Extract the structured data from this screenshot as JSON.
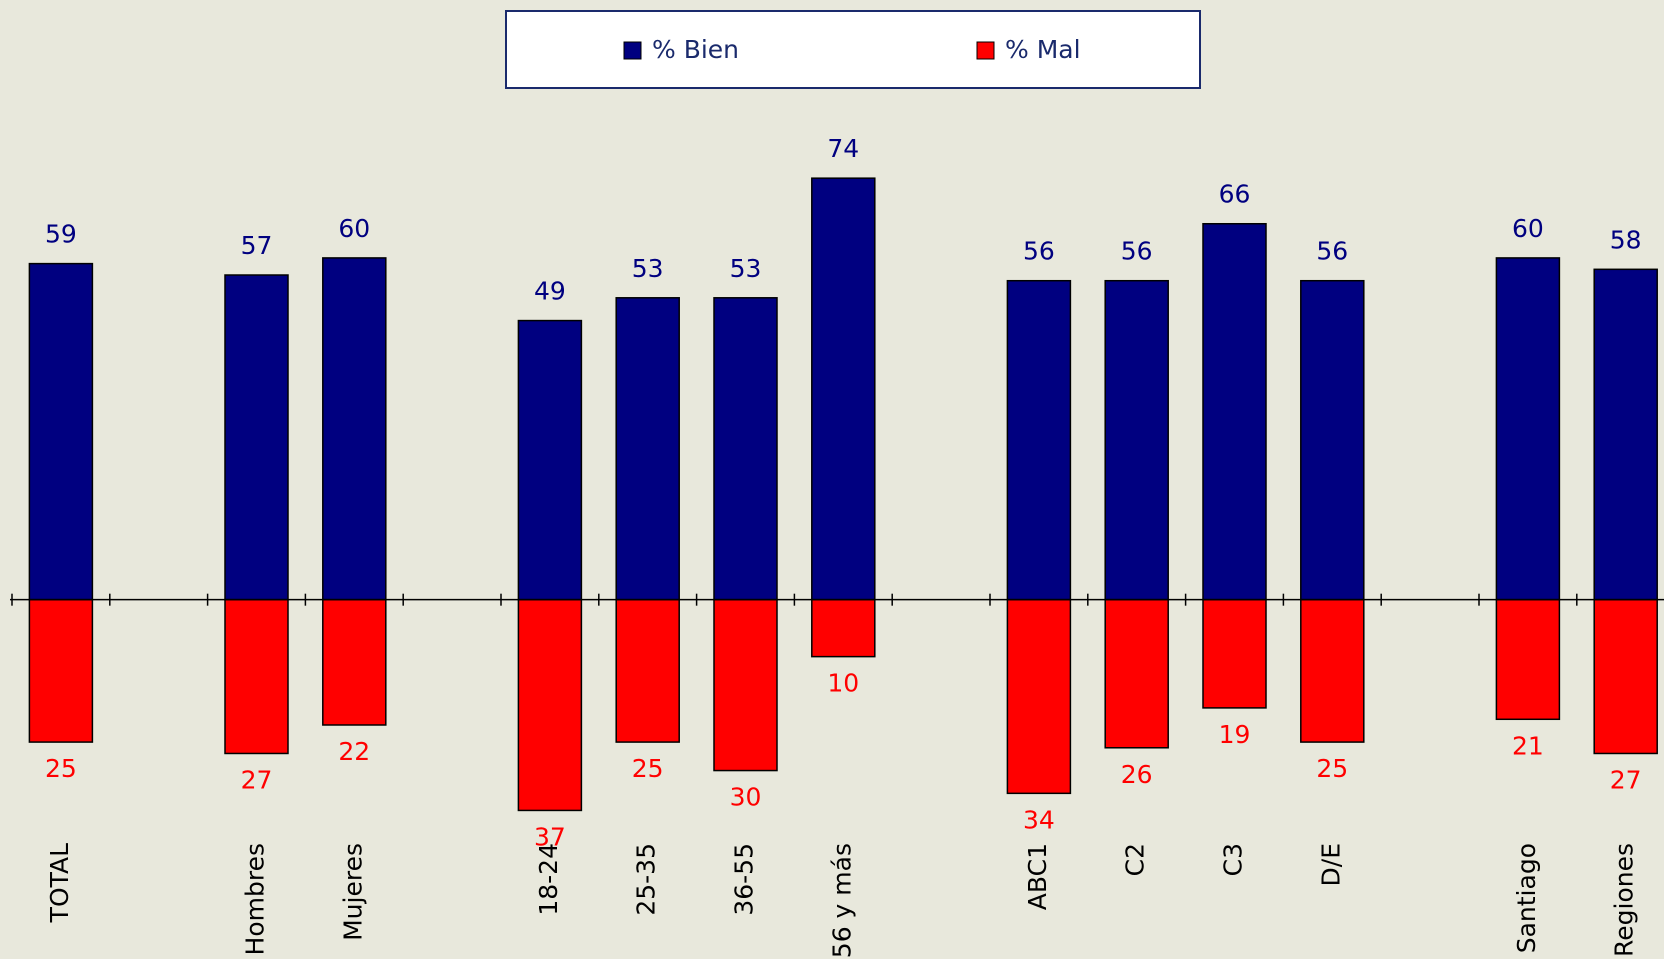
{
  "chart_data": {
    "type": "bar",
    "categories": [
      "TOTAL",
      null,
      "Hombres",
      "Mujeres",
      null,
      "18-24",
      "25-35",
      "36-55",
      "56 y más",
      null,
      "ABC1",
      "C2",
      "C3",
      "D/E",
      null,
      "Santiago",
      "Regiones"
    ],
    "series": [
      {
        "name": "% Bien",
        "color": "#000080",
        "values": [
          59,
          null,
          57,
          60,
          null,
          49,
          53,
          53,
          74,
          null,
          56,
          56,
          66,
          56,
          null,
          60,
          58
        ]
      },
      {
        "name": "% Mal",
        "color": "#ff0000",
        "values": [
          -25,
          null,
          -27,
          -22,
          null,
          -37,
          -25,
          -30,
          -10,
          null,
          -34,
          -26,
          -19,
          -25,
          null,
          -21,
          -27
        ],
        "value_labels": [
          "25",
          null,
          "27",
          "22",
          null,
          "37",
          "25",
          "30",
          "10",
          null,
          "34",
          "26",
          "19",
          "25",
          null,
          "21",
          "27"
        ]
      }
    ],
    "ylim": [
      -45,
      80
    ],
    "legend": "top"
  }
}
